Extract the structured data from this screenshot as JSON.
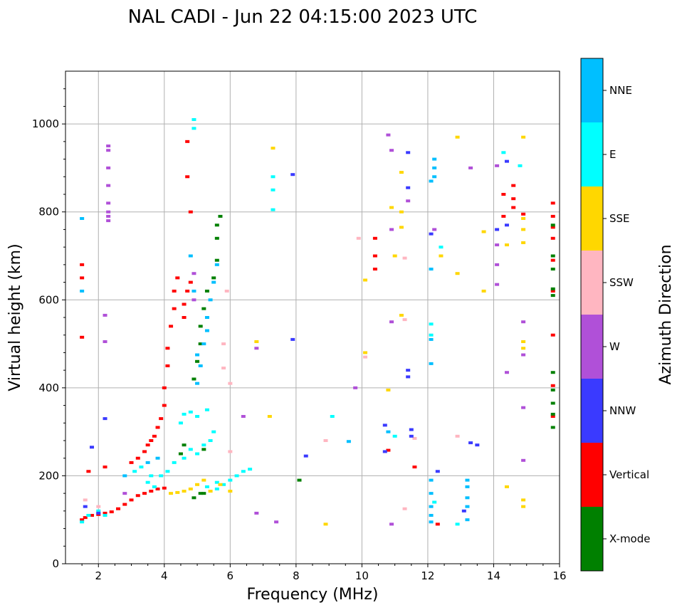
{
  "chart_data": {
    "type": "scatter",
    "title": "NAL CADI - Jun 22 04:15:00 2023 UTC",
    "xlabel": "Frequency (MHz)",
    "ylabel": "Virtual height (km)",
    "xlim": [
      1,
      16
    ],
    "ylim": [
      0,
      1120
    ],
    "xticks": [
      "2",
      "4",
      "6",
      "8",
      "10",
      "12",
      "14",
      "16"
    ],
    "xtick_values": [
      2,
      4,
      6,
      8,
      10,
      12,
      14,
      16
    ],
    "yticks": [
      "0",
      "200",
      "400",
      "600",
      "800",
      "1000"
    ],
    "ytick_values": [
      0,
      200,
      400,
      600,
      800,
      1000
    ],
    "grid": true,
    "colorbar": {
      "label": "Azimuth Direction",
      "categories": [
        {
          "name": "X-mode",
          "color": "#008000"
        },
        {
          "name": "Vertical",
          "color": "#ff0000"
        },
        {
          "name": "NNW",
          "color": "#3a3aff"
        },
        {
          "name": "W",
          "color": "#b050d8"
        },
        {
          "name": "SSW",
          "color": "#ffb6c1"
        },
        {
          "name": "SSE",
          "color": "#ffd700"
        },
        {
          "name": "E",
          "color": "#00ffff"
        },
        {
          "name": "NNE",
          "color": "#00bfff"
        }
      ]
    },
    "series": [
      {
        "name": "Vertical",
        "points": [
          [
            1.5,
            100
          ],
          [
            1.6,
            105
          ],
          [
            1.8,
            110
          ],
          [
            2.0,
            112
          ],
          [
            2.2,
            115
          ],
          [
            2.4,
            118
          ],
          [
            2.6,
            125
          ],
          [
            2.8,
            135
          ],
          [
            3.0,
            145
          ],
          [
            3.2,
            155
          ],
          [
            3.4,
            160
          ],
          [
            3.6,
            165
          ],
          [
            3.8,
            170
          ],
          [
            4.0,
            172
          ],
          [
            3.0,
            230
          ],
          [
            3.2,
            240
          ],
          [
            3.4,
            255
          ],
          [
            3.5,
            270
          ],
          [
            3.6,
            280
          ],
          [
            3.7,
            290
          ],
          [
            3.8,
            310
          ],
          [
            3.9,
            330
          ],
          [
            4.0,
            360
          ],
          [
            4.0,
            400
          ],
          [
            4.1,
            450
          ],
          [
            4.1,
            490
          ],
          [
            4.2,
            540
          ],
          [
            4.3,
            580
          ],
          [
            4.3,
            620
          ],
          [
            4.4,
            650
          ],
          [
            4.6,
            560
          ],
          [
            4.6,
            590
          ],
          [
            4.7,
            620
          ],
          [
            4.8,
            640
          ],
          [
            4.8,
            800
          ],
          [
            4.7,
            880
          ],
          [
            4.7,
            960
          ],
          [
            1.5,
            680
          ],
          [
            1.5,
            650
          ],
          [
            1.5,
            515
          ],
          [
            1.7,
            210
          ],
          [
            2.2,
            220
          ],
          [
            10.4,
            740
          ],
          [
            10.4,
            700
          ],
          [
            10.4,
            670
          ],
          [
            10.8,
            258
          ],
          [
            11.6,
            220
          ],
          [
            12.3,
            90
          ],
          [
            14.3,
            840
          ],
          [
            14.3,
            790
          ],
          [
            14.6,
            860
          ],
          [
            14.6,
            830
          ],
          [
            14.6,
            810
          ],
          [
            14.9,
            795
          ],
          [
            15.8,
            820
          ],
          [
            15.8,
            790
          ],
          [
            15.8,
            765
          ],
          [
            15.8,
            740
          ],
          [
            15.8,
            690
          ],
          [
            15.8,
            620
          ],
          [
            15.8,
            520
          ],
          [
            15.8,
            405
          ],
          [
            15.8,
            335
          ]
        ]
      },
      {
        "name": "X-mode",
        "points": [
          [
            4.9,
            150
          ],
          [
            5.1,
            160
          ],
          [
            5.2,
            160
          ],
          [
            4.9,
            420
          ],
          [
            5.0,
            460
          ],
          [
            5.1,
            500
          ],
          [
            5.1,
            540
          ],
          [
            5.2,
            580
          ],
          [
            5.3,
            620
          ],
          [
            5.5,
            650
          ],
          [
            5.6,
            690
          ],
          [
            5.6,
            740
          ],
          [
            5.6,
            770
          ],
          [
            5.7,
            790
          ],
          [
            4.5,
            250
          ],
          [
            4.6,
            270
          ],
          [
            5.2,
            260
          ],
          [
            8.1,
            190
          ],
          [
            15.8,
            770
          ],
          [
            15.8,
            700
          ],
          [
            15.8,
            670
          ],
          [
            15.8,
            625
          ],
          [
            15.8,
            610
          ],
          [
            15.8,
            435
          ],
          [
            15.8,
            395
          ],
          [
            15.8,
            365
          ],
          [
            15.8,
            340
          ],
          [
            15.8,
            310
          ]
        ]
      },
      {
        "name": "E",
        "points": [
          [
            1.5,
            95
          ],
          [
            1.7,
            110
          ],
          [
            2.0,
            120
          ],
          [
            2.2,
            110
          ],
          [
            3.1,
            210
          ],
          [
            3.3,
            220
          ],
          [
            3.6,
            200
          ],
          [
            3.9,
            200
          ],
          [
            4.1,
            210
          ],
          [
            4.3,
            230
          ],
          [
            4.6,
            240
          ],
          [
            4.8,
            260
          ],
          [
            5.0,
            250
          ],
          [
            5.2,
            270
          ],
          [
            5.4,
            280
          ],
          [
            5.5,
            300
          ],
          [
            4.5,
            320
          ],
          [
            4.6,
            340
          ],
          [
            4.8,
            345
          ],
          [
            5.0,
            335
          ],
          [
            5.3,
            350
          ],
          [
            5.6,
            170
          ],
          [
            5.8,
            180
          ],
          [
            6.0,
            190
          ],
          [
            6.2,
            200
          ],
          [
            6.4,
            210
          ],
          [
            6.6,
            215
          ],
          [
            5.3,
            175
          ],
          [
            5.6,
            185
          ],
          [
            3.5,
            185
          ],
          [
            3.7,
            175
          ],
          [
            7.3,
            880
          ],
          [
            7.3,
            850
          ],
          [
            7.3,
            805
          ],
          [
            9.1,
            335
          ],
          [
            11.0,
            290
          ],
          [
            12.1,
            545
          ],
          [
            12.1,
            520
          ],
          [
            12.2,
            140
          ],
          [
            12.4,
            720
          ],
          [
            12.9,
            90
          ],
          [
            14.3,
            935
          ],
          [
            14.8,
            905
          ],
          [
            4.9,
            990
          ],
          [
            4.9,
            1010
          ]
        ]
      },
      {
        "name": "NNE",
        "points": [
          [
            5.0,
            410
          ],
          [
            5.1,
            450
          ],
          [
            5.2,
            500
          ],
          [
            5.3,
            530
          ],
          [
            5.3,
            560
          ],
          [
            5.4,
            600
          ],
          [
            5.5,
            640
          ],
          [
            5.6,
            680
          ],
          [
            5.0,
            475
          ],
          [
            4.9,
            620
          ],
          [
            4.8,
            700
          ],
          [
            1.5,
            785
          ],
          [
            1.5,
            620
          ],
          [
            12.2,
            920
          ],
          [
            12.2,
            900
          ],
          [
            12.2,
            880
          ],
          [
            12.1,
            870
          ],
          [
            12.1,
            670
          ],
          [
            12.1,
            510
          ],
          [
            12.1,
            455
          ],
          [
            12.1,
            190
          ],
          [
            12.1,
            160
          ],
          [
            12.1,
            130
          ],
          [
            12.1,
            110
          ],
          [
            12.1,
            95
          ],
          [
            13.2,
            190
          ],
          [
            13.2,
            175
          ],
          [
            13.2,
            150
          ],
          [
            13.2,
            130
          ],
          [
            13.2,
            100
          ],
          [
            3.8,
            240
          ],
          [
            3.5,
            230
          ],
          [
            2.8,
            200
          ],
          [
            9.6,
            278
          ],
          [
            10.8,
            300
          ]
        ]
      },
      {
        "name": "SSE",
        "points": [
          [
            4.2,
            160
          ],
          [
            4.4,
            162
          ],
          [
            4.6,
            165
          ],
          [
            4.8,
            170
          ],
          [
            5.4,
            165
          ],
          [
            5.7,
            180
          ],
          [
            6.0,
            165
          ],
          [
            5.2,
            190
          ],
          [
            5.0,
            180
          ],
          [
            6.8,
            505
          ],
          [
            7.2,
            335
          ],
          [
            7.3,
            945
          ],
          [
            8.9,
            90
          ],
          [
            10.1,
            480
          ],
          [
            10.1,
            645
          ],
          [
            10.8,
            395
          ],
          [
            10.9,
            810
          ],
          [
            11.2,
            890
          ],
          [
            11.2,
            800
          ],
          [
            11.2,
            765
          ],
          [
            11.2,
            565
          ],
          [
            11.0,
            700
          ],
          [
            12.4,
            700
          ],
          [
            12.9,
            660
          ],
          [
            12.9,
            970
          ],
          [
            13.7,
            755
          ],
          [
            13.7,
            620
          ],
          [
            14.4,
            725
          ],
          [
            14.4,
            175
          ],
          [
            14.9,
            970
          ],
          [
            14.9,
            785
          ],
          [
            14.9,
            760
          ],
          [
            14.9,
            730
          ],
          [
            14.9,
            505
          ],
          [
            14.9,
            490
          ],
          [
            14.9,
            145
          ],
          [
            14.9,
            130
          ]
        ]
      },
      {
        "name": "SSW",
        "points": [
          [
            5.8,
            445
          ],
          [
            5.8,
            500
          ],
          [
            5.9,
            620
          ],
          [
            6.0,
            410
          ],
          [
            6.0,
            255
          ],
          [
            9.9,
            740
          ],
          [
            10.1,
            470
          ],
          [
            11.3,
            555
          ],
          [
            11.3,
            695
          ],
          [
            11.6,
            285
          ],
          [
            11.3,
            125
          ],
          [
            8.9,
            280
          ],
          [
            12.9,
            290
          ],
          [
            1.6,
            145
          ],
          [
            2.0,
            130
          ]
        ]
      },
      {
        "name": "W",
        "points": [
          [
            2.3,
            950
          ],
          [
            2.3,
            940
          ],
          [
            2.3,
            900
          ],
          [
            2.3,
            860
          ],
          [
            2.3,
            820
          ],
          [
            2.3,
            800
          ],
          [
            2.3,
            790
          ],
          [
            2.3,
            780
          ],
          [
            2.2,
            565
          ],
          [
            2.2,
            505
          ],
          [
            4.9,
            600
          ],
          [
            4.9,
            660
          ],
          [
            6.4,
            335
          ],
          [
            6.8,
            490
          ],
          [
            6.8,
            115
          ],
          [
            9.8,
            400
          ],
          [
            10.8,
            975
          ],
          [
            10.9,
            940
          ],
          [
            10.9,
            760
          ],
          [
            10.9,
            550
          ],
          [
            10.9,
            90
          ],
          [
            11.4,
            825
          ],
          [
            12.2,
            760
          ],
          [
            13.3,
            900
          ],
          [
            14.1,
            725
          ],
          [
            14.1,
            680
          ],
          [
            14.1,
            635
          ],
          [
            14.1,
            905
          ],
          [
            14.4,
            435
          ],
          [
            14.9,
            550
          ],
          [
            14.9,
            475
          ],
          [
            14.9,
            355
          ],
          [
            14.9,
            235
          ],
          [
            7.4,
            95
          ],
          [
            2.8,
            160
          ]
        ]
      },
      {
        "name": "NNW",
        "points": [
          [
            1.8,
            265
          ],
          [
            2.2,
            330
          ],
          [
            7.9,
            885
          ],
          [
            7.9,
            510
          ],
          [
            8.3,
            245
          ],
          [
            10.7,
            315
          ],
          [
            11.4,
            935
          ],
          [
            11.4,
            855
          ],
          [
            11.4,
            440
          ],
          [
            11.4,
            425
          ],
          [
            11.5,
            305
          ],
          [
            11.5,
            290
          ],
          [
            12.1,
            750
          ],
          [
            12.3,
            210
          ],
          [
            13.3,
            275
          ],
          [
            13.5,
            270
          ],
          [
            14.1,
            760
          ],
          [
            14.4,
            770
          ],
          [
            14.4,
            915
          ],
          [
            13.1,
            120
          ],
          [
            10.7,
            255
          ],
          [
            2.0,
            115
          ],
          [
            1.6,
            130
          ]
        ]
      }
    ]
  }
}
